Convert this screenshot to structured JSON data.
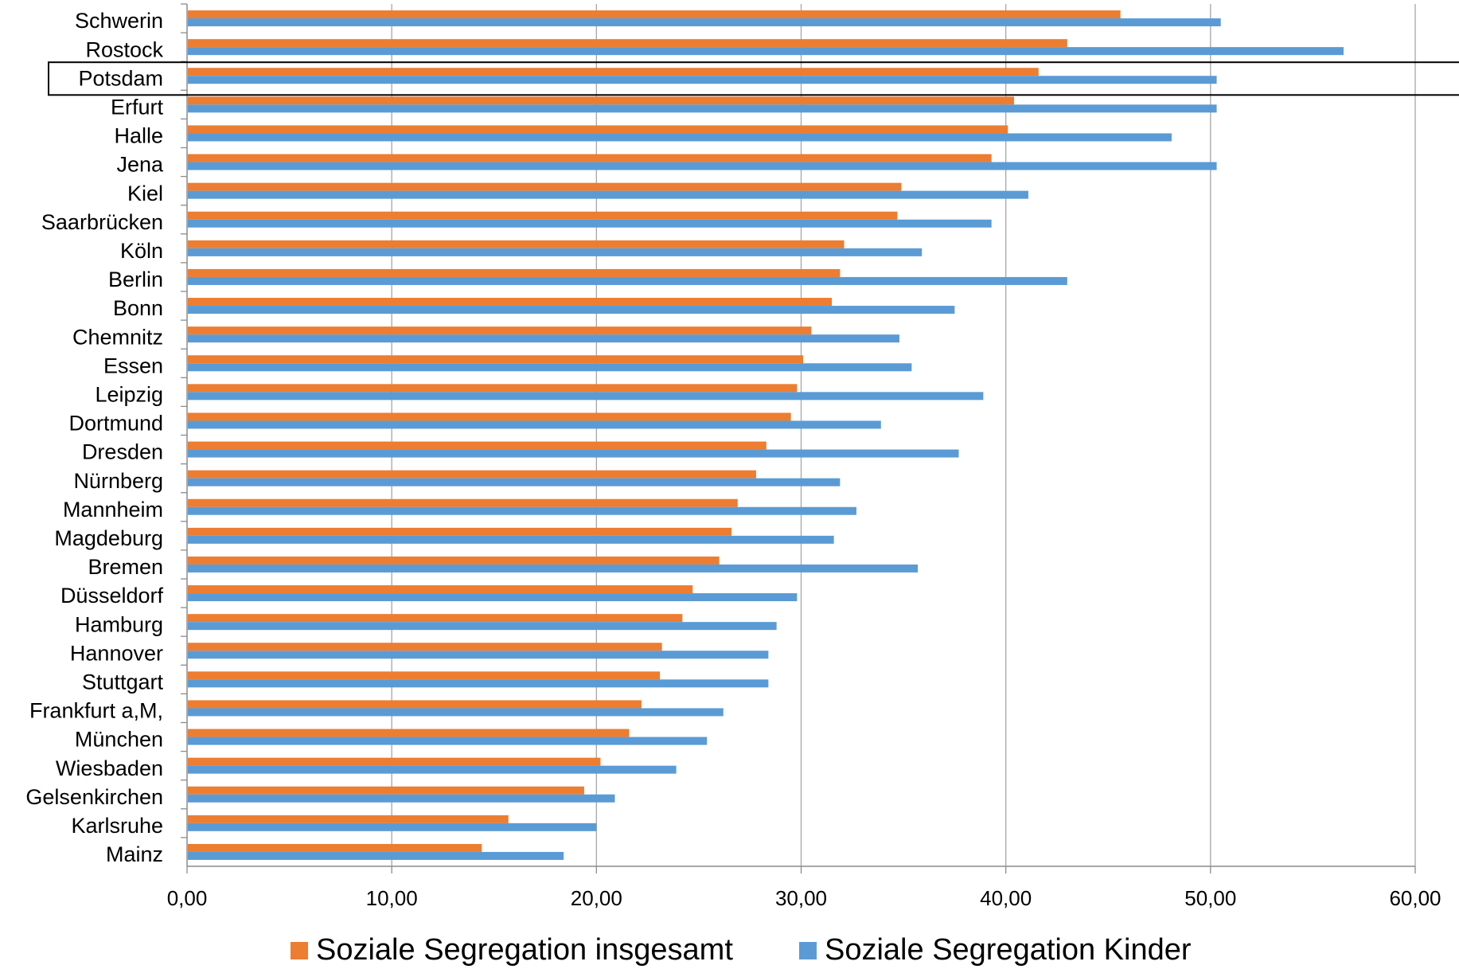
{
  "chart_data": {
    "type": "bar",
    "orientation": "horizontal",
    "categories": [
      "Schwerin",
      "Rostock",
      "Potsdam",
      "Erfurt",
      "Halle",
      "Jena",
      "Kiel",
      "Saarbrücken",
      "Köln",
      "Berlin",
      "Bonn",
      "Chemnitz",
      "Essen",
      "Leipzig",
      "Dortmund",
      "Dresden",
      "Nürnberg",
      "Mannheim",
      "Magdeburg",
      "Bremen",
      "Düsseldorf",
      "Hamburg",
      "Hannover",
      "Stuttgart",
      "Frankfurt a,M,",
      "München",
      "Wiesbaden",
      "Gelsenkirchen",
      "Karlsruhe",
      "Mainz"
    ],
    "series": [
      {
        "name": "Soziale Segregation insgesamt",
        "color": "#ED7D31",
        "values": [
          45.6,
          43.0,
          41.6,
          40.4,
          40.1,
          39.3,
          34.9,
          34.7,
          32.1,
          31.9,
          31.5,
          30.5,
          30.1,
          29.8,
          29.5,
          28.3,
          27.8,
          26.9,
          26.6,
          26.0,
          24.7,
          24.2,
          23.2,
          23.1,
          22.2,
          21.6,
          20.2,
          19.4,
          15.7,
          14.4
        ]
      },
      {
        "name": "Soziale Segregation Kinder",
        "color": "#5B9BD5",
        "values": [
          50.5,
          56.5,
          50.3,
          50.3,
          48.1,
          50.3,
          41.1,
          39.3,
          35.9,
          43.0,
          37.5,
          34.8,
          35.4,
          38.9,
          33.9,
          37.7,
          31.9,
          32.7,
          31.6,
          35.7,
          29.8,
          28.8,
          28.4,
          28.4,
          26.2,
          25.4,
          23.9,
          20.9,
          20.0,
          18.4
        ]
      }
    ],
    "xlim": [
      0,
      60
    ],
    "xticks": [
      "0,00",
      "10,00",
      "20,00",
      "30,00",
      "40,00",
      "50,00",
      "60,00"
    ],
    "grid": true,
    "legend_position": "bottom",
    "highlighted_category": "Potsdam"
  }
}
